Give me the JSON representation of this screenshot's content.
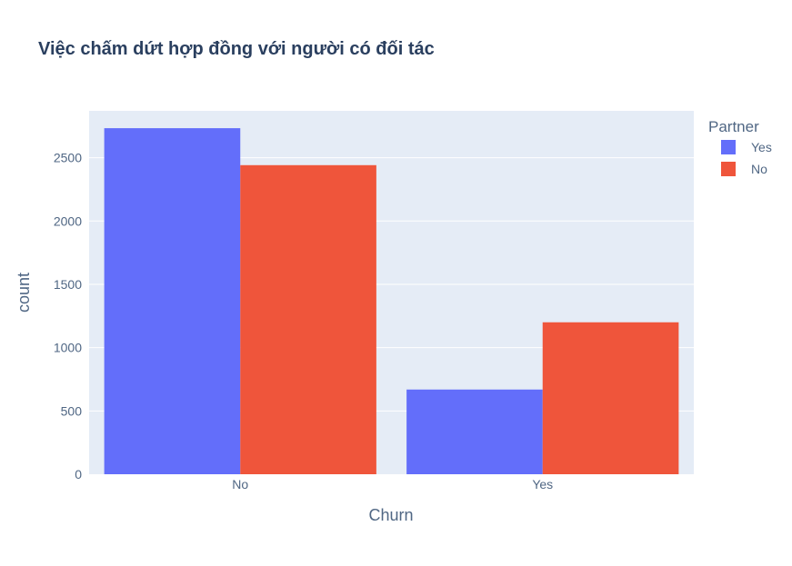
{
  "chart_data": {
    "type": "bar",
    "title": "Việc chấm dứt hợp đồng với người có đối tác",
    "xlabel": "Churn",
    "ylabel": "count",
    "categories": [
      "No",
      "Yes"
    ],
    "series": [
      {
        "name": "Yes",
        "values": [
          2733,
          669
        ],
        "color": "#636efa"
      },
      {
        "name": "No",
        "values": [
          2441,
          1200
        ],
        "color": "#ef553b"
      }
    ],
    "ylim": [
      0,
      2870
    ],
    "yticks": [
      0,
      500,
      1000,
      1500,
      2000,
      2500
    ],
    "grid": true,
    "legend": {
      "title": "Partner",
      "placement": "top-right"
    },
    "plot_background": "#e5ecf6"
  }
}
